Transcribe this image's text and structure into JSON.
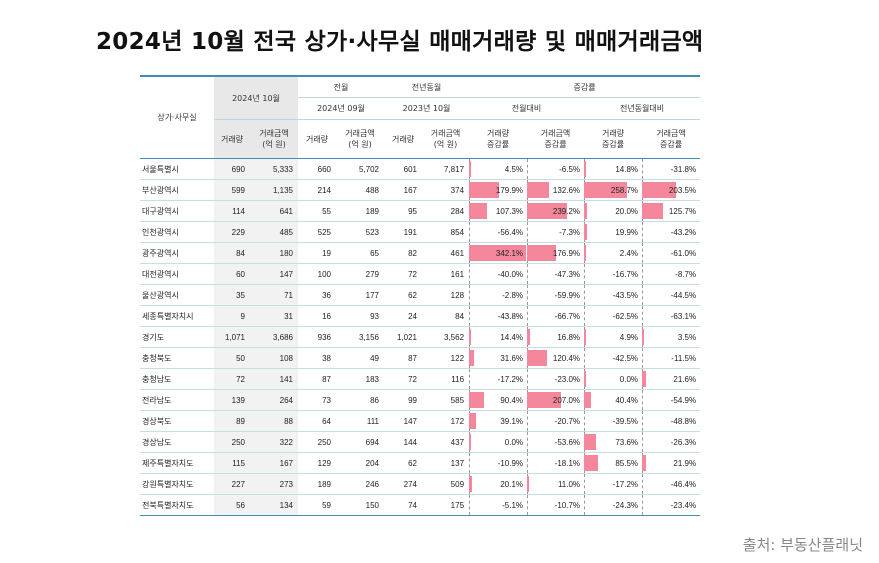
{
  "title": "2024년 10월 전국 상가·사무실 매매거래량 및 매매거래금액",
  "source": "출처: 부동산플래닛",
  "header": {
    "region_label": "상가·사무실",
    "current": "2024년 10월",
    "prev_month_group": "전월",
    "prev_month": "2024년 09월",
    "prev_year_group": "전년동월",
    "prev_year": "2023년 10월",
    "change_group": "증감률",
    "mom": "전월대비",
    "yoy": "전년동월대비",
    "vol": "거래량",
    "amt_line1": "거래금액",
    "amt_line2": "(억 원)",
    "chg_vol_line1": "거래량",
    "chg_vol_line2": "증감률",
    "chg_amt_line1": "거래금액",
    "chg_amt_line2": "증감률"
  },
  "colors": {
    "increase": "#f4879b",
    "decrease": "#2a9ad6",
    "rule": "#3b8fb5"
  },
  "rows": [
    {
      "region": "서울특별시",
      "cv": "690",
      "ca": "5,333",
      "pv": "660",
      "pa": "5,702",
      "yv": "601",
      "ya": "7,817",
      "m1": "4.5%",
      "m2": "-6.5%",
      "y1": "14.8%",
      "y2": "-31.8%",
      "n": [
        4.5,
        -6.5,
        14.8,
        -31.8
      ]
    },
    {
      "region": "부산광역시",
      "cv": "599",
      "ca": "1,135",
      "pv": "214",
      "pa": "488",
      "yv": "167",
      "ya": "374",
      "m1": "179.9%",
      "m2": "132.6%",
      "y1": "258.7%",
      "y2": "203.5%",
      "n": [
        179.9,
        132.6,
        258.7,
        203.5
      ]
    },
    {
      "region": "대구광역시",
      "cv": "114",
      "ca": "641",
      "pv": "55",
      "pa": "189",
      "yv": "95",
      "ya": "284",
      "m1": "107.3%",
      "m2": "239.2%",
      "y1": "20.0%",
      "y2": "125.7%",
      "n": [
        107.3,
        239.2,
        20.0,
        125.7
      ]
    },
    {
      "region": "인천광역시",
      "cv": "229",
      "ca": "485",
      "pv": "525",
      "pa": "523",
      "yv": "191",
      "ya": "854",
      "m1": "-56.4%",
      "m2": "-7.3%",
      "y1": "19.9%",
      "y2": "-43.2%",
      "n": [
        -56.4,
        -7.3,
        19.9,
        -43.2
      ]
    },
    {
      "region": "광주광역시",
      "cv": "84",
      "ca": "180",
      "pv": "19",
      "pa": "65",
      "yv": "82",
      "ya": "461",
      "m1": "342.1%",
      "m2": "176.9%",
      "y1": "2.4%",
      "y2": "-61.0%",
      "n": [
        342.1,
        176.9,
        2.4,
        -61.0
      ]
    },
    {
      "region": "대전광역시",
      "cv": "60",
      "ca": "147",
      "pv": "100",
      "pa": "279",
      "yv": "72",
      "ya": "161",
      "m1": "-40.0%",
      "m2": "-47.3%",
      "y1": "-16.7%",
      "y2": "-8.7%",
      "n": [
        -40.0,
        -47.3,
        -16.7,
        -8.7
      ]
    },
    {
      "region": "울산광역시",
      "cv": "35",
      "ca": "71",
      "pv": "36",
      "pa": "177",
      "yv": "62",
      "ya": "128",
      "m1": "-2.8%",
      "m2": "-59.9%",
      "y1": "-43.5%",
      "y2": "-44.5%",
      "n": [
        -2.8,
        -59.9,
        -43.5,
        -44.5
      ]
    },
    {
      "region": "세종특별자치시",
      "cv": "9",
      "ca": "31",
      "pv": "16",
      "pa": "93",
      "yv": "24",
      "ya": "84",
      "m1": "-43.8%",
      "m2": "-66.7%",
      "y1": "-62.5%",
      "y2": "-63.1%",
      "n": [
        -43.8,
        -66.7,
        -62.5,
        -63.1
      ]
    },
    {
      "region": "경기도",
      "cv": "1,071",
      "ca": "3,686",
      "pv": "936",
      "pa": "3,156",
      "yv": "1,021",
      "ya": "3,562",
      "m1": "14.4%",
      "m2": "16.8%",
      "y1": "4.9%",
      "y2": "3.5%",
      "n": [
        14.4,
        16.8,
        4.9,
        3.5
      ]
    },
    {
      "region": "충청북도",
      "cv": "50",
      "ca": "108",
      "pv": "38",
      "pa": "49",
      "yv": "87",
      "ya": "122",
      "m1": "31.6%",
      "m2": "120.4%",
      "y1": "-42.5%",
      "y2": "-11.5%",
      "n": [
        31.6,
        120.4,
        -42.5,
        -11.5
      ]
    },
    {
      "region": "충청남도",
      "cv": "72",
      "ca": "141",
      "pv": "87",
      "pa": "183",
      "yv": "72",
      "ya": "116",
      "m1": "-17.2%",
      "m2": "-23.0%",
      "y1": "0.0%",
      "y2": "21.6%",
      "n": [
        -17.2,
        -23.0,
        0.0,
        21.6
      ]
    },
    {
      "region": "전라남도",
      "cv": "139",
      "ca": "264",
      "pv": "73",
      "pa": "86",
      "yv": "99",
      "ya": "585",
      "m1": "90.4%",
      "m2": "207.0%",
      "y1": "40.4%",
      "y2": "-54.9%",
      "n": [
        90.4,
        207.0,
        40.4,
        -54.9
      ]
    },
    {
      "region": "경상북도",
      "cv": "89",
      "ca": "88",
      "pv": "64",
      "pa": "111",
      "yv": "147",
      "ya": "172",
      "m1": "39.1%",
      "m2": "-20.7%",
      "y1": "-39.5%",
      "y2": "-48.8%",
      "n": [
        39.1,
        -20.7,
        -39.5,
        -48.8
      ]
    },
    {
      "region": "경상남도",
      "cv": "250",
      "ca": "322",
      "pv": "250",
      "pa": "694",
      "yv": "144",
      "ya": "437",
      "m1": "0.0%",
      "m2": "-53.6%",
      "y1": "73.6%",
      "y2": "-26.3%",
      "n": [
        0.0,
        -53.6,
        73.6,
        -26.3
      ]
    },
    {
      "region": "제주특별자치도",
      "cv": "115",
      "ca": "167",
      "pv": "129",
      "pa": "204",
      "yv": "62",
      "ya": "137",
      "m1": "-10.9%",
      "m2": "-18.1%",
      "y1": "85.5%",
      "y2": "21.9%",
      "n": [
        -10.9,
        -18.1,
        85.5,
        21.9
      ]
    },
    {
      "region": "강원특별자치도",
      "cv": "227",
      "ca": "273",
      "pv": "189",
      "pa": "246",
      "yv": "274",
      "ya": "509",
      "m1": "20.1%",
      "m2": "11.0%",
      "y1": "-17.2%",
      "y2": "-46.4%",
      "n": [
        20.1,
        11.0,
        -17.2,
        -46.4
      ]
    },
    {
      "region": "전북특별자치도",
      "cv": "56",
      "ca": "134",
      "pv": "59",
      "pa": "150",
      "yv": "74",
      "ya": "175",
      "m1": "-5.1%",
      "m2": "-10.7%",
      "y1": "-24.3%",
      "y2": "-23.4%",
      "n": [
        -5.1,
        -10.7,
        -24.3,
        -23.4
      ]
    }
  ]
}
